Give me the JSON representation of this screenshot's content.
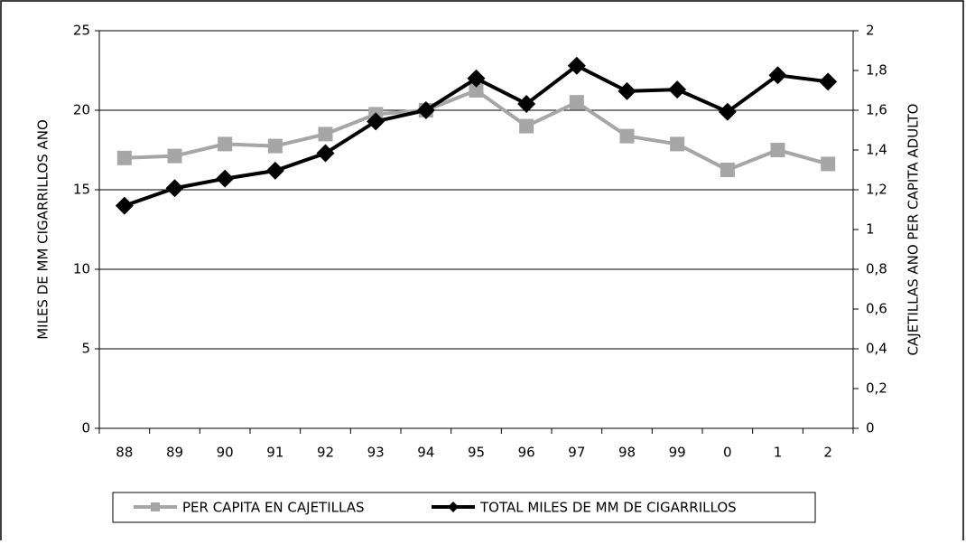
{
  "chart_data": {
    "type": "line",
    "categories": [
      "88",
      "89",
      "90",
      "91",
      "92",
      "93",
      "94",
      "95",
      "96",
      "97",
      "98",
      "99",
      "0",
      "1",
      "2"
    ],
    "ylabel": "MILES DE MM CIGARRILLOS ANO",
    "y2label": "CAJETILLAS ANO PER CAPITA ADULTO",
    "ylim": [
      0,
      25
    ],
    "yticks": [
      0,
      5,
      10,
      15,
      20,
      25
    ],
    "y2lim": [
      0,
      2
    ],
    "y2ticks": [
      0,
      {
        "value": 0.2,
        "label": "0,2"
      },
      {
        "value": 0.4,
        "label": "0,4"
      },
      {
        "value": 0.6,
        "label": "0,6"
      },
      {
        "value": 0.8,
        "label": "0,8"
      },
      1,
      {
        "value": 1.2,
        "label": "1,2"
      },
      {
        "value": 1.4,
        "label": "1,4"
      },
      {
        "value": 1.6,
        "label": "1,6"
      },
      {
        "value": 1.8,
        "label": "1,8"
      },
      2
    ],
    "grid": true,
    "legend": "bottom",
    "series": [
      {
        "name": "PER CAPITA EN CAJETILLAS",
        "color": "#a6a6a6",
        "marker": "square",
        "axis": "y2",
        "values": [
          1.36,
          1.37,
          1.43,
          1.42,
          1.48,
          1.58,
          1.6,
          1.7,
          1.52,
          1.64,
          1.47,
          1.43,
          1.3,
          1.4,
          1.33
        ]
      },
      {
        "name": "TOTAL MILES DE MM DE CIGARRILLOS",
        "color": "#000000",
        "marker": "diamond",
        "values": [
          14.0,
          15.1,
          15.7,
          16.2,
          17.3,
          19.3,
          20.0,
          22.0,
          20.4,
          22.8,
          21.2,
          21.3,
          19.9,
          22.2,
          21.8
        ]
      }
    ]
  }
}
